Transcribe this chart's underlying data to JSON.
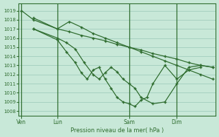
{
  "background_color": "#c8e8d8",
  "grid_color": "#a0ccbc",
  "line_color": "#2d6b2d",
  "marker_color": "#2d6b2d",
  "xlabel": "Pression niveau de la mer( hPa )",
  "ylim": [
    1007.5,
    1019.8
  ],
  "yticks": [
    1008,
    1009,
    1010,
    1011,
    1012,
    1013,
    1014,
    1015,
    1016,
    1017,
    1018,
    1019
  ],
  "xtick_labels": [
    "Ven",
    "Lun",
    "Sam",
    "Dim"
  ],
  "xtick_positions": [
    0,
    24,
    72,
    104
  ],
  "vlines": [
    0,
    24,
    72,
    104
  ],
  "xlim": [
    -2,
    130
  ],
  "series": [
    {
      "x": [
        0,
        8,
        24,
        32,
        40,
        48,
        56,
        64,
        72,
        80,
        88,
        96,
        104,
        112,
        120,
        128
      ],
      "y": [
        1019.0,
        1018.0,
        1017.0,
        1016.7,
        1016.3,
        1016.0,
        1015.7,
        1015.3,
        1015.0,
        1014.7,
        1014.3,
        1014.0,
        1013.7,
        1013.3,
        1013.0,
        1012.8
      ]
    },
    {
      "x": [
        8,
        24,
        32,
        40,
        48,
        56,
        64,
        72,
        80,
        88,
        96,
        104,
        112,
        120,
        128
      ],
      "y": [
        1018.2,
        1017.0,
        1017.8,
        1017.2,
        1016.5,
        1016.0,
        1015.5,
        1015.0,
        1014.5,
        1014.0,
        1013.5,
        1013.0,
        1012.5,
        1012.0,
        1011.5
      ]
    },
    {
      "x": [
        8,
        24,
        30,
        36,
        42,
        48,
        52,
        56,
        60,
        64,
        68,
        72,
        76,
        80,
        88,
        96,
        104,
        112,
        120,
        128
      ],
      "y": [
        1017.0,
        1016.0,
        1015.5,
        1014.8,
        1013.3,
        1012.0,
        1011.5,
        1012.2,
        1012.8,
        1012.3,
        1011.5,
        1011.0,
        1010.5,
        1009.5,
        1008.8,
        1009.0,
        1011.0,
        1012.8,
        1013.0,
        1012.8
      ]
    },
    {
      "x": [
        8,
        24,
        30,
        36,
        40,
        44,
        48,
        52,
        56,
        60,
        64,
        68,
        72,
        76,
        80,
        84,
        88,
        96,
        104,
        112,
        120
      ],
      "y": [
        1017.0,
        1015.8,
        1014.5,
        1013.3,
        1012.2,
        1011.5,
        1012.5,
        1012.8,
        1011.5,
        1010.5,
        1009.5,
        1009.0,
        1008.8,
        1008.5,
        1009.2,
        1009.5,
        1011.0,
        1013.0,
        1011.5,
        1012.5,
        1012.8
      ]
    }
  ]
}
